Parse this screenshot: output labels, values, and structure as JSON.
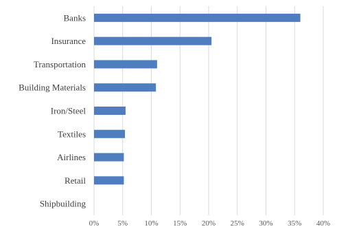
{
  "chart_data": {
    "type": "bar",
    "orientation": "horizontal",
    "categories": [
      "Banks",
      "Insurance",
      "Transportation",
      "Building Materials",
      "Iron/Steel",
      "Textiles",
      "Airlines",
      "Retail",
      "Shipbuilding"
    ],
    "values": [
      36.0,
      20.5,
      11.0,
      10.8,
      5.5,
      5.4,
      5.2,
      5.2,
      0
    ],
    "xlim": [
      0,
      40
    ],
    "x_ticks": [
      "0%",
      "5%",
      "10%",
      "15%",
      "20%",
      "25%",
      "30%",
      "35%",
      "40%"
    ],
    "grid": true,
    "bar_color": "#4f7dc0"
  }
}
